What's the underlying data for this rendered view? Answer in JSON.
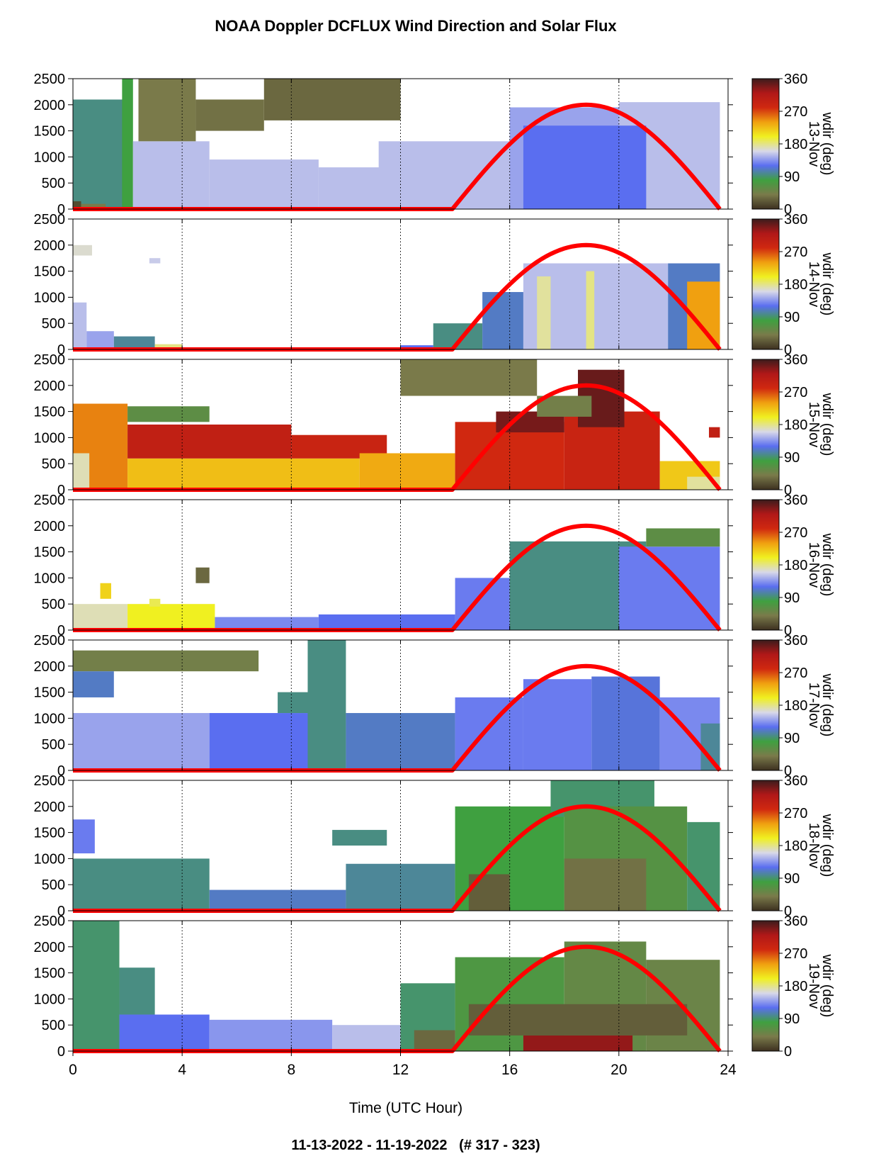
{
  "title": "NOAA Doppler DCFLUX Wind Direction and Solar Flux",
  "footer": "11-13-2022 - 11-19-2022   (# 317 - 323)",
  "chart_data": {
    "type": "heatmap",
    "xlabel": "Time (UTC Hour)",
    "xlim": [
      0,
      24
    ],
    "xticks": [
      0,
      4,
      8,
      12,
      16,
      20,
      24
    ],
    "ylim": [
      0,
      2500
    ],
    "yticks": [
      0,
      500,
      1000,
      1500,
      2000,
      2500
    ],
    "colorbar": {
      "label": "wdir (deg)",
      "ticks": [
        0,
        90,
        180,
        270,
        360
      ],
      "colors": [
        "#3c3020",
        "#7a7a4a",
        "#3fa040",
        "#5a6ef0",
        "#d8d8e8",
        "#f0f020",
        "#f0a010",
        "#d02810",
        "#b01818",
        "#3c1c1c"
      ]
    },
    "solar_flux": {
      "color": "#ff0000",
      "sunrise_hour": 13.9,
      "sunset_hour": 23.7,
      "peak_hour": 18.8,
      "peak_value": 2000
    },
    "panels": [
      {
        "day": "13-Nov",
        "blocks": [
          [
            0,
            2.0,
            0,
            2100,
            95
          ],
          [
            0,
            0.3,
            0,
            150,
            15
          ],
          [
            0.3,
            1.2,
            0,
            100,
            40
          ],
          [
            1.8,
            2.2,
            0,
            2500,
            80
          ],
          [
            2.2,
            5.0,
            0,
            1300,
            150
          ],
          [
            5.0,
            9.0,
            0,
            950,
            150
          ],
          [
            9.0,
            13.0,
            0,
            800,
            150
          ],
          [
            11.2,
            16.0,
            0,
            1300,
            150
          ],
          [
            16.0,
            20.0,
            0,
            1950,
            140
          ],
          [
            20.0,
            23.7,
            0,
            2050,
            150
          ],
          [
            2.4,
            4.5,
            1300,
            2500,
            40
          ],
          [
            4.5,
            7.0,
            1500,
            2100,
            35
          ],
          [
            7.0,
            12.0,
            1700,
            2500,
            30
          ],
          [
            16.5,
            21.0,
            0,
            1600,
            120
          ]
        ]
      },
      {
        "day": "14-Nov",
        "blocks": [
          [
            0,
            0.5,
            0,
            900,
            150
          ],
          [
            0.5,
            1.5,
            0,
            350,
            140
          ],
          [
            1.5,
            3.0,
            0,
            250,
            100
          ],
          [
            3.0,
            4.0,
            0,
            100,
            180
          ],
          [
            0,
            0.7,
            1800,
            2000,
            165
          ],
          [
            2.8,
            3.2,
            1650,
            1750,
            155
          ],
          [
            12.0,
            13.2,
            0,
            80,
            120
          ],
          [
            13.2,
            15.0,
            0,
            500,
            95
          ],
          [
            15.0,
            16.5,
            0,
            1100,
            110
          ],
          [
            16.5,
            21.8,
            0,
            1650,
            150
          ],
          [
            17.0,
            17.5,
            0,
            1400,
            175
          ],
          [
            18.8,
            19.1,
            0,
            1500,
            180
          ],
          [
            21.8,
            23.7,
            0,
            1650,
            110
          ],
          [
            22.5,
            23.7,
            0,
            1300,
            240
          ]
        ]
      },
      {
        "day": "15-Nov",
        "blocks": [
          [
            0,
            2.0,
            0,
            1650,
            250
          ],
          [
            0,
            0.6,
            0,
            700,
            170
          ],
          [
            2.0,
            5.0,
            1300,
            1600,
            60
          ],
          [
            2.0,
            10.5,
            0,
            600,
            225
          ],
          [
            2.0,
            8.0,
            600,
            1250,
            300
          ],
          [
            8.0,
            11.5,
            600,
            1050,
            290
          ],
          [
            10.5,
            14.0,
            0,
            700,
            235
          ],
          [
            14.0,
            18.0,
            0,
            1300,
            280
          ],
          [
            15.5,
            18.0,
            1100,
            1500,
            340
          ],
          [
            18.0,
            21.5,
            0,
            1500,
            290
          ],
          [
            18.5,
            20.2,
            1200,
            2300,
            345
          ],
          [
            21.5,
            23.7,
            0,
            550,
            220
          ],
          [
            22.5,
            23.7,
            0,
            250,
            175
          ],
          [
            12.0,
            17.0,
            1800,
            2500,
            40
          ],
          [
            17.0,
            19.0,
            1400,
            1800,
            45
          ],
          [
            23.3,
            23.7,
            1000,
            1200,
            300
          ]
        ]
      },
      {
        "day": "16-Nov",
        "blocks": [
          [
            0,
            2.0,
            0,
            500,
            170
          ],
          [
            2.0,
            5.2,
            0,
            500,
            200
          ],
          [
            1.0,
            1.4,
            600,
            900,
            215
          ],
          [
            4.5,
            5.0,
            900,
            1200,
            30
          ],
          [
            5.2,
            9.0,
            0,
            250,
            130
          ],
          [
            9.0,
            14.0,
            0,
            300,
            120
          ],
          [
            14.0,
            16.0,
            0,
            1000,
            125
          ],
          [
            16.0,
            21.0,
            0,
            1700,
            95
          ],
          [
            20.0,
            23.7,
            0,
            1600,
            125
          ],
          [
            21.0,
            23.7,
            1600,
            1950,
            60
          ],
          [
            2.8,
            3.2,
            450,
            600,
            190
          ]
        ]
      },
      {
        "day": "17-Nov",
        "blocks": [
          [
            0,
            6.8,
            1900,
            2300,
            45
          ],
          [
            0,
            1.5,
            1400,
            1900,
            110
          ],
          [
            0,
            5.0,
            0,
            1100,
            140
          ],
          [
            5.0,
            9.0,
            0,
            1100,
            120
          ],
          [
            7.5,
            9.0,
            1100,
            1500,
            95
          ],
          [
            8.6,
            10.0,
            0,
            2500,
            95
          ],
          [
            10.0,
            14.0,
            0,
            1100,
            110
          ],
          [
            14.0,
            16.5,
            0,
            1400,
            125
          ],
          [
            16.5,
            19.0,
            0,
            1750,
            125
          ],
          [
            19.0,
            21.5,
            0,
            1800,
            115
          ],
          [
            21.5,
            23.7,
            0,
            1400,
            130
          ],
          [
            23.0,
            23.7,
            0,
            900,
            100
          ]
        ]
      },
      {
        "day": "18-Nov",
        "blocks": [
          [
            0,
            0.8,
            1100,
            1750,
            125
          ],
          [
            0,
            5.0,
            0,
            1000,
            95
          ],
          [
            5.0,
            10.0,
            0,
            400,
            110
          ],
          [
            10.0,
            14.0,
            0,
            900,
            100
          ],
          [
            14.0,
            18.0,
            0,
            2000,
            80
          ],
          [
            17.5,
            21.3,
            1800,
            2500,
            90
          ],
          [
            18.0,
            22.5,
            0,
            2000,
            65
          ],
          [
            22.5,
            23.7,
            0,
            1700,
            90
          ],
          [
            14.5,
            16.0,
            0,
            700,
            25
          ],
          [
            18.0,
            21.0,
            0,
            1000,
            35
          ],
          [
            9.5,
            11.5,
            1250,
            1550,
            95
          ]
        ]
      },
      {
        "day": "19-Nov",
        "blocks": [
          [
            0,
            1.7,
            0,
            2500,
            90
          ],
          [
            1.7,
            3.0,
            700,
            1600,
            95
          ],
          [
            1.7,
            5.0,
            0,
            700,
            120
          ],
          [
            5.0,
            9.5,
            0,
            600,
            135
          ],
          [
            9.5,
            12.0,
            0,
            500,
            150
          ],
          [
            12.0,
            14.0,
            0,
            1300,
            90
          ],
          [
            14.0,
            18.0,
            0,
            1800,
            70
          ],
          [
            18.0,
            21.0,
            0,
            2100,
            55
          ],
          [
            21.0,
            23.7,
            0,
            1750,
            50
          ],
          [
            12.5,
            14.0,
            0,
            400,
            30
          ],
          [
            16.5,
            20.5,
            0,
            300,
            330
          ],
          [
            14.5,
            22.5,
            300,
            900,
            25
          ]
        ]
      }
    ]
  }
}
